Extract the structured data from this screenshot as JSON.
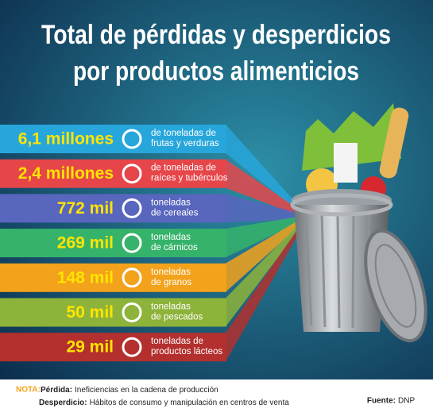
{
  "title": [
    "Total de pérdidas y desperdicios",
    "por productos alimenticios"
  ],
  "rows": [
    {
      "amount": "6,1 millones",
      "description": [
        "de toneladas de",
        "frutas y verduras"
      ]
    },
    {
      "amount": "2,4 millones",
      "description": [
        "de toneladas de",
        "raíces y tubérculos"
      ]
    },
    {
      "amount": "772 mil",
      "description": [
        "toneladas",
        "de cereales"
      ]
    },
    {
      "amount": "269 mil",
      "description": [
        "toneladas",
        "de cárnicos"
      ]
    },
    {
      "amount": "148 mil",
      "description": [
        "toneladas",
        "de granos"
      ]
    },
    {
      "amount": "50 mil",
      "description": [
        "toneladas",
        "de pescados"
      ]
    },
    {
      "amount": "29 mil",
      "description": [
        "toneladas de",
        "productos lácteos"
      ]
    }
  ],
  "note": {
    "label": "NOTA:",
    "items": [
      {
        "term": "Pérdida:",
        "text": "Ineficiencias en la cadena de producción"
      },
      {
        "term": "Desperdicio:",
        "text": "Hábitos de consumo y manipulación en centros de venta"
      }
    ]
  },
  "source": {
    "label": "Fuente:",
    "value": "DNP"
  }
}
